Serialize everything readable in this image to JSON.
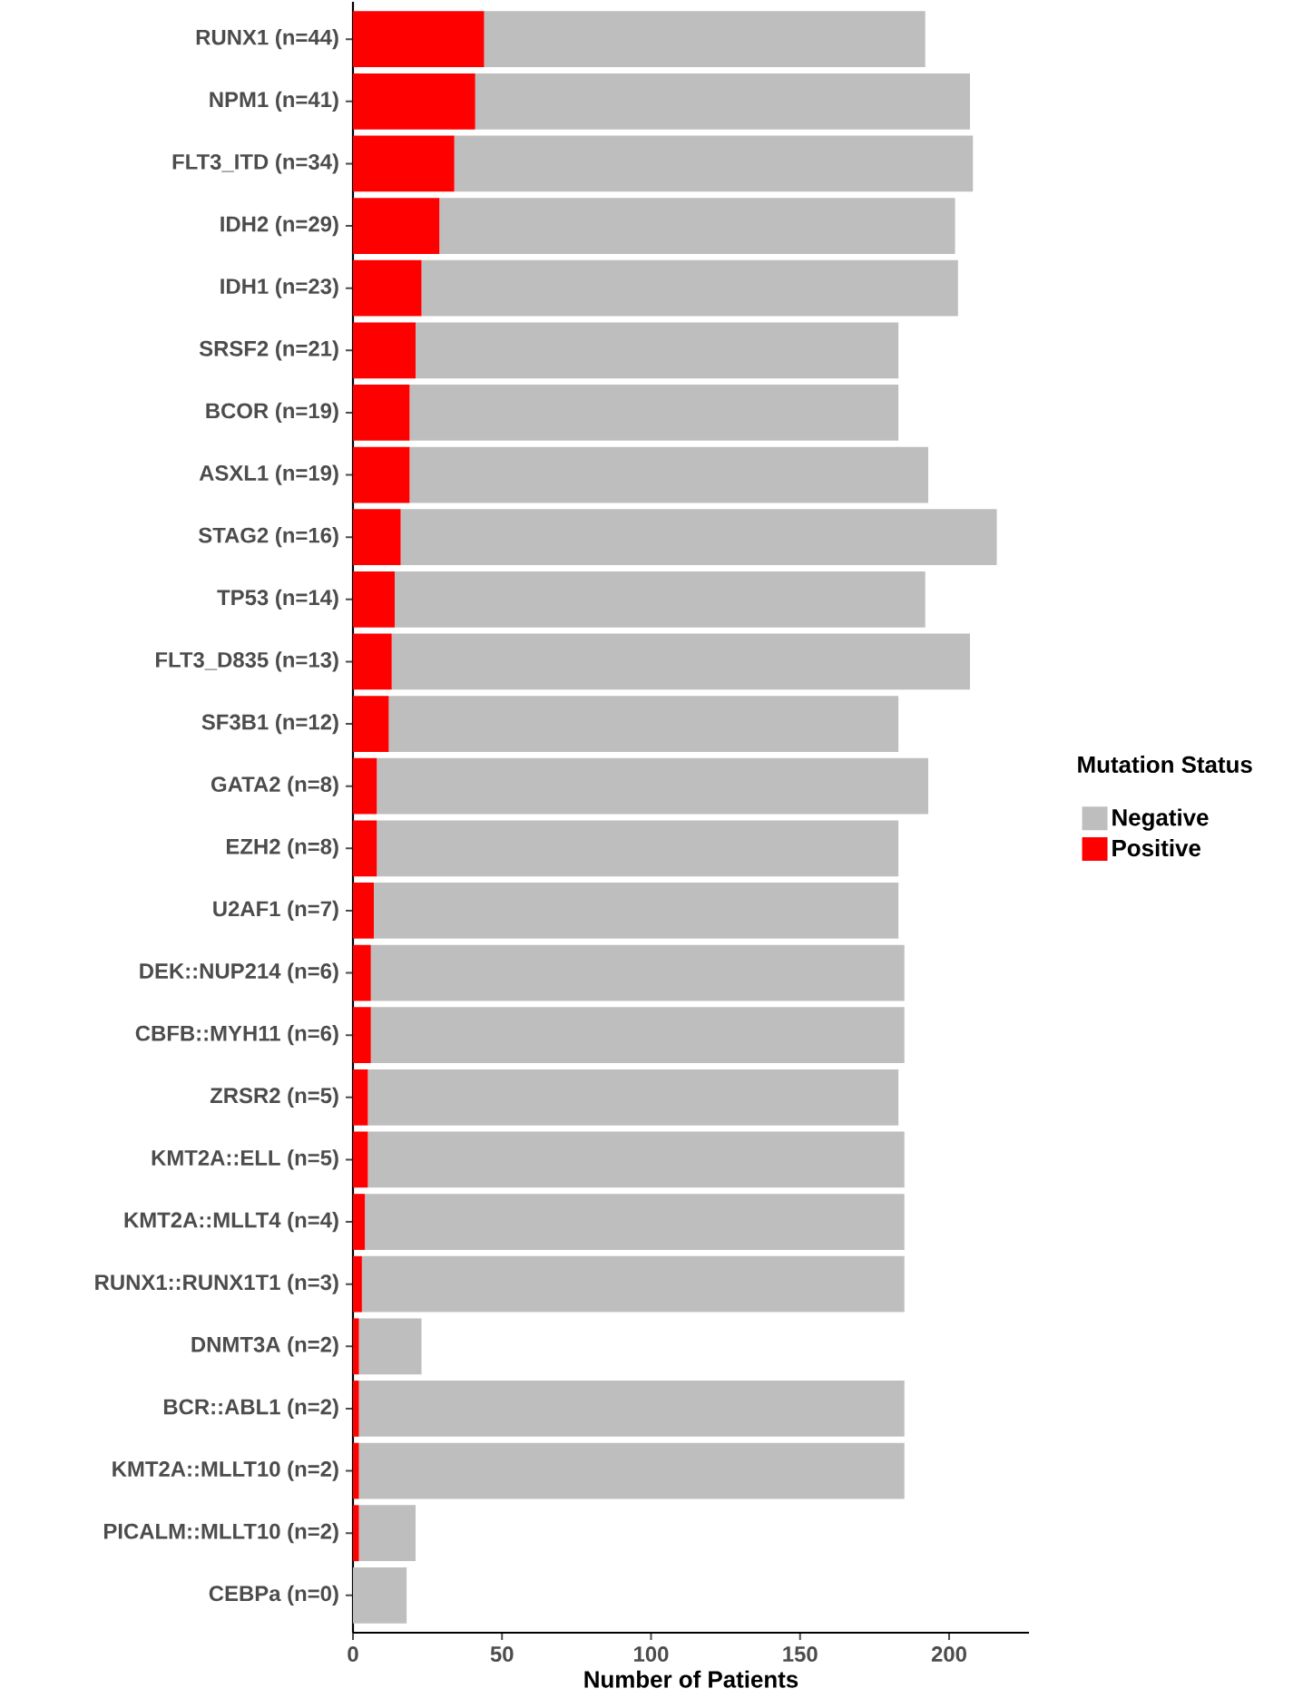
{
  "chart_data": {
    "type": "bar",
    "orientation": "horizontal",
    "stacked": true,
    "xlabel": "Number of Patients",
    "legend_title": "Mutation Status",
    "legend": "right",
    "grid": false,
    "categories": [
      "RUNX1 (n=44)",
      "NPM1 (n=41)",
      "FLT3_ITD (n=34)",
      "IDH2 (n=29)",
      "IDH1 (n=23)",
      "SRSF2 (n=21)",
      "BCOR (n=19)",
      "ASXL1 (n=19)",
      "STAG2 (n=16)",
      "TP53 (n=14)",
      "FLT3_D835 (n=13)",
      "SF3B1 (n=12)",
      "GATA2 (n=8)",
      "EZH2 (n=8)",
      "U2AF1 (n=7)",
      "DEK::NUP214 (n=6)",
      "CBFB::MYH11 (n=6)",
      "ZRSR2 (n=5)",
      "KMT2A::ELL (n=5)",
      "KMT2A::MLLT4 (n=4)",
      "RUNX1::RUNX1T1 (n=3)",
      "DNMT3A (n=2)",
      "BCR::ABL1 (n=2)",
      "KMT2A::MLLT10 (n=2)",
      "PICALM::MLLT10 (n=2)",
      "CEBPa (n=0)"
    ],
    "series": [
      {
        "name": "Positive",
        "color": "#ff0000",
        "values": [
          44,
          41,
          34,
          29,
          23,
          21,
          19,
          19,
          16,
          14,
          13,
          12,
          8,
          8,
          7,
          6,
          6,
          5,
          5,
          4,
          3,
          2,
          2,
          2,
          2,
          0
        ]
      },
      {
        "name": "Negative",
        "color": "#bebebe",
        "values": [
          148,
          166,
          174,
          173,
          180,
          162,
          164,
          174,
          200,
          178,
          194,
          171,
          185,
          175,
          176,
          179,
          179,
          178,
          180,
          181,
          182,
          21,
          183,
          183,
          19,
          18
        ]
      }
    ],
    "xlim": [
      0,
      226.8
    ],
    "xticks": [
      0,
      50,
      100,
      150,
      200
    ]
  }
}
